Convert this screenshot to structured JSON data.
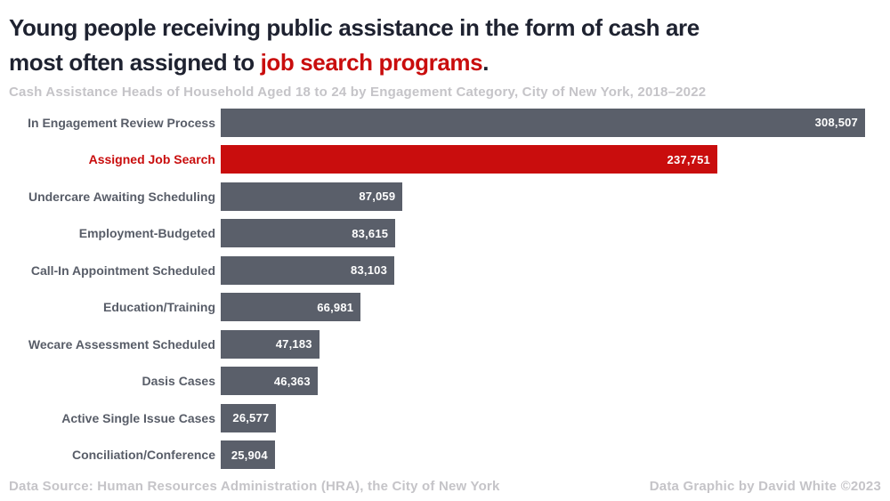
{
  "title": {
    "line1": "Young people receiving public assistance in the form of cash are",
    "line2_prefix": "most often assigned to ",
    "line2_highlight": "job search programs",
    "line2_suffix": "."
  },
  "subtitle": "Cash Assistance Heads of Household Aged 18 to 24 by Engagement Category, City of New York, 2018–2022",
  "footer": {
    "source": "Data Source: Human Resources Administration (HRA), the City of New York",
    "credit": "Data Graphic by David White ©2023"
  },
  "colors": {
    "title_text": "#1e2230",
    "highlight_red": "#c90d0d",
    "bar_gray": "#5a5f6a",
    "category_label_gray": "#585d68",
    "muted_gray_text": "#c5c4c8",
    "value_label_white": "#ffffff"
  },
  "chart_data": {
    "type": "bar",
    "orientation": "horizontal",
    "title": "Cash Assistance Heads of Household Aged 18 to 24 by Engagement Category, City of New York, 2018–2022",
    "xlabel": "",
    "ylabel": "",
    "xlim": [
      0,
      308507
    ],
    "grid": false,
    "legend": false,
    "value_label_position": "inside-end",
    "highlight_index": 1,
    "categories": [
      "In Engagement Review Process",
      "Assigned Job Search",
      "Undercare Awaiting Scheduling",
      "Employment-Budgeted",
      "Call-In Appointment Scheduled",
      "Education/Training",
      "Wecare Assessment Scheduled",
      "Dasis Cases",
      "Active Single Issue Cases",
      "Conciliation/Conference"
    ],
    "values": [
      308507,
      237751,
      87059,
      83615,
      83103,
      66981,
      47183,
      46363,
      26577,
      25904
    ],
    "display_values": [
      "308,507",
      "237,751",
      "87,059",
      "83,615",
      "83,103",
      "66,981",
      "47,183",
      "46,363",
      "26,577",
      "25,904"
    ]
  }
}
